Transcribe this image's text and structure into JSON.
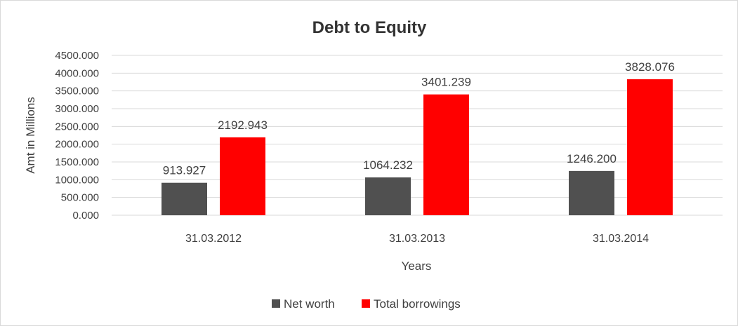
{
  "chart_data": {
    "type": "bar",
    "title": "Debt to Equity",
    "xlabel": "Years",
    "ylabel": "Amt in Millions",
    "categories": [
      "31.03.2012",
      "31.03.2013",
      "31.03.2014"
    ],
    "series": [
      {
        "name": "Net worth",
        "color": "#505050",
        "values": [
          913.927,
          1064.232,
          1246.2
        ],
        "labels": [
          "913.927",
          "1064.232",
          "1246.200"
        ]
      },
      {
        "name": "Total borrowings",
        "color": "#ff0000",
        "values": [
          2192.943,
          3401.239,
          3828.076
        ],
        "labels": [
          "2192.943",
          "3401.239",
          "3828.076"
        ]
      }
    ],
    "ylim": [
      0,
      4500
    ],
    "yticks": [
      "0.000",
      "500.000",
      "1000.000",
      "1500.000",
      "2000.000",
      "2500.000",
      "3000.000",
      "3500.000",
      "4000.000",
      "4500.000"
    ],
    "grid": true,
    "legend_position": "bottom"
  }
}
